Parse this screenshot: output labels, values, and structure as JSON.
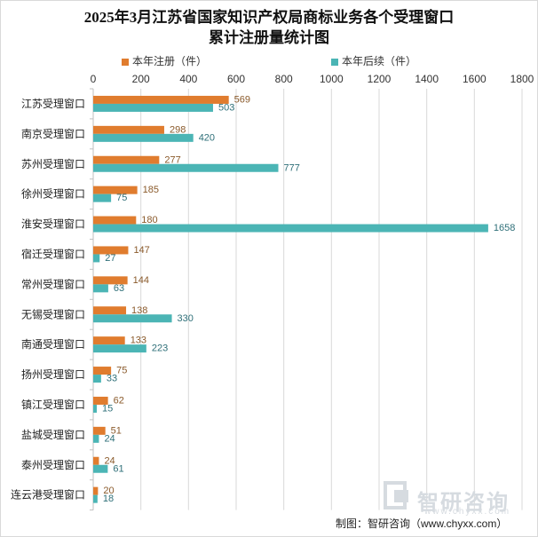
{
  "title_line1": "2025年3月江苏省国家知识产权局商标业务各个受理窗口",
  "title_line2": "累计注册量统计图",
  "source": "制图：智研咨询（www.chyxx.com）",
  "watermark": {
    "name": "智研咨询",
    "url": "www.chyxx.com",
    "icon": "zhiyan-logo-icon"
  },
  "colors": {
    "registration": "#E07C2E",
    "renewal": "#4BB5B5",
    "grid": "#d9d9d9",
    "axis_text": "#333333"
  },
  "chart_data": {
    "type": "bar",
    "orientation": "horizontal",
    "categories": [
      "江苏受理窗口",
      "南京受理窗口",
      "苏州受理窗口",
      "徐州受理窗口",
      "淮安受理窗口",
      "宿迁受理窗口",
      "常州受理窗口",
      "无锡受理窗口",
      "南通受理窗口",
      "扬州受理窗口",
      "镇江受理窗口",
      "盐城受理窗口",
      "泰州受理窗口",
      "连云港受理窗口"
    ],
    "series": [
      {
        "name": "本年注册（件）",
        "values": [
          569,
          298,
          277,
          185,
          180,
          147,
          144,
          138,
          133,
          75,
          62,
          51,
          24,
          20
        ]
      },
      {
        "name": "本年后续（件）",
        "values": [
          503,
          420,
          777,
          75,
          1658,
          27,
          63,
          330,
          223,
          33,
          15,
          24,
          61,
          18
        ]
      }
    ],
    "xlim": [
      0,
      1800
    ],
    "xticks": [
      "0",
      "200",
      "400",
      "600",
      "800",
      "1000",
      "1200",
      "1400",
      "1600",
      "1800"
    ],
    "grid": true,
    "legend_position": "top"
  }
}
